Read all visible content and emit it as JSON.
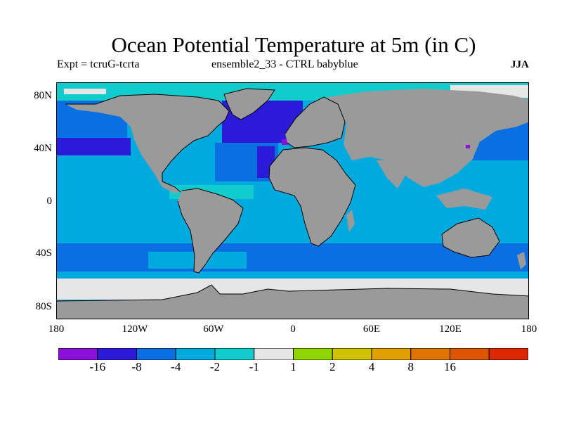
{
  "title": "Ocean Potential Temperature at 5m (in C)",
  "subtitle_left": "Expt = tcruG-tcrta",
  "subtitle_center": "ensemble2_33 - CTRL babyblue",
  "subtitle_right": "JJA",
  "y_axis_labels": [
    "80N",
    "40N",
    "0",
    "40S",
    "80S"
  ],
  "x_axis_labels": [
    "180",
    "120W",
    "60W",
    "0",
    "60E",
    "120E",
    "180"
  ],
  "colorbar": {
    "colors": [
      "#8a10d8",
      "#2b1ad8",
      "#0a6fe0",
      "#00aadf",
      "#11cccc",
      "#e6e6e6",
      "#8fd600",
      "#d0c200",
      "#e0a000",
      "#e07400",
      "#de5500",
      "#dc2800"
    ],
    "labels": [
      "-16",
      "-8",
      "-4",
      "-2",
      "-1",
      "1",
      "2",
      "4",
      "8",
      "16"
    ]
  },
  "land_color": "#9a9a9a"
}
